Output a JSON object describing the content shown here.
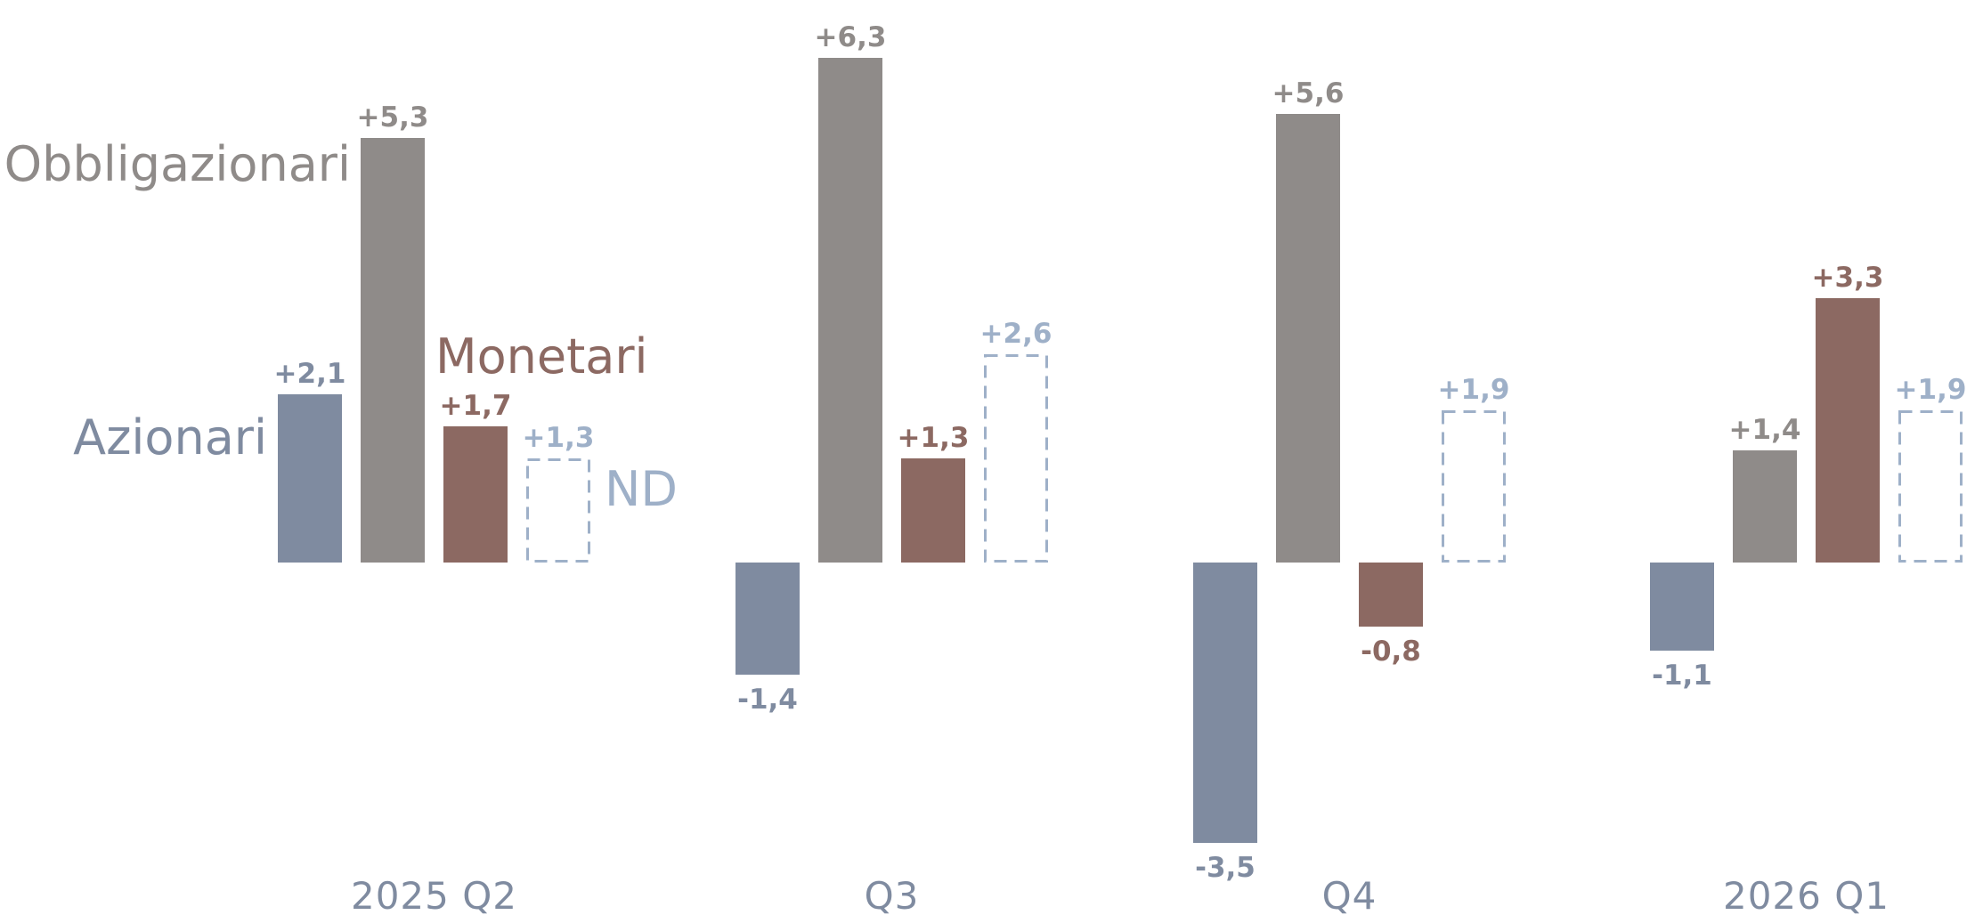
{
  "chart_data": {
    "type": "bar",
    "categories": [
      "2025 Q2",
      "Q3",
      "Q4",
      "2026 Q1"
    ],
    "series": [
      {
        "name": "Azionari",
        "values": [
          2.1,
          -1.4,
          -3.5,
          -1.1
        ],
        "value_labels": [
          "+2,1",
          "-1,4",
          "-3,5",
          "-1,1"
        ],
        "color": "#7f8ba0",
        "style": "solid"
      },
      {
        "name": "Obbligazionari",
        "values": [
          5.3,
          6.3,
          5.6,
          1.4
        ],
        "value_labels": [
          "+5,3",
          "+6,3",
          "+5,6",
          "+1,4"
        ],
        "color": "#8f8b89",
        "style": "solid"
      },
      {
        "name": "Monetari",
        "values": [
          1.7,
          1.3,
          -0.8,
          3.3
        ],
        "value_labels": [
          "+1,7",
          "+1,3",
          "-0,8",
          "+3,3"
        ],
        "color": "#8c6962",
        "style": "solid"
      },
      {
        "name": "ND",
        "values": [
          1.3,
          2.6,
          1.9,
          1.9
        ],
        "value_labels": [
          "+1,3",
          "+2,6",
          "+1,9",
          "+1,9"
        ],
        "color": "#9eb0c8",
        "style": "dashed"
      }
    ],
    "category_label_color": "#7f8ba0",
    "grid": false,
    "legend": "direct labels on first group"
  }
}
